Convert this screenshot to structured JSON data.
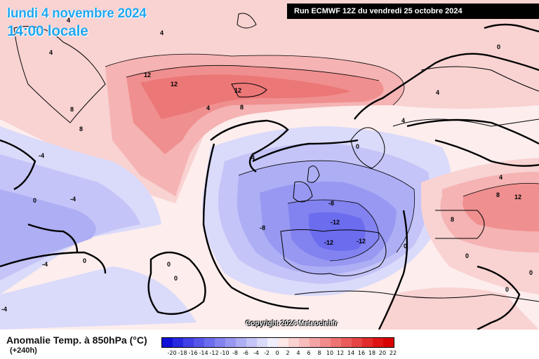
{
  "header": {
    "date_title": "lundi 4 novembre 2024",
    "time_title": "14:00 locale",
    "run_info": "Run ECMWF 12Z du vendredi 25 octobre 2024"
  },
  "footer": {
    "variable_label": "Anomalie Temp. à 850hPa (°C)",
    "lead_time": "(+240h)",
    "copyright": "Copyright 2024 Meteociel.fr"
  },
  "legend": {
    "ticks": [
      "-20",
      "-18",
      "-16",
      "-14",
      "-12",
      "-10",
      "-8",
      "-6",
      "-4",
      "-2",
      "0",
      "2",
      "4",
      "6",
      "8",
      "10",
      "12",
      "14",
      "16",
      "18",
      "20",
      "22"
    ],
    "colors": [
      "#1010d8",
      "#2828e0",
      "#4040e6",
      "#5656ea",
      "#6c6cee",
      "#8282f0",
      "#9898f2",
      "#aeaef5",
      "#c4c4f8",
      "#dadafa",
      "#eeeefd",
      "#fde8e8",
      "#fad2d2",
      "#f7bcbc",
      "#f4a4a4",
      "#f18c8c",
      "#ee7474",
      "#ea5c5c",
      "#e64444",
      "#e22c2c",
      "#de1414",
      "#d80000"
    ]
  },
  "map_labels": [
    {
      "text": "4"
    },
    {
      "text": "4"
    },
    {
      "text": "4"
    },
    {
      "text": "12"
    },
    {
      "text": "12"
    },
    {
      "text": "12"
    },
    {
      "text": "8"
    },
    {
      "text": "8"
    },
    {
      "text": "8"
    },
    {
      "text": "4"
    },
    {
      "text": "0"
    },
    {
      "text": "0"
    },
    {
      "text": "4"
    },
    {
      "text": "4"
    },
    {
      "text": "-4"
    },
    {
      "text": "-4"
    },
    {
      "text": "0"
    },
    {
      "text": "-4"
    },
    {
      "text": "0"
    },
    {
      "text": "-4"
    },
    {
      "text": "-8"
    },
    {
      "text": "-8"
    },
    {
      "text": "-12"
    },
    {
      "text": "-12"
    },
    {
      "text": "-12"
    },
    {
      "text": "0"
    },
    {
      "text": "0"
    },
    {
      "text": "0"
    },
    {
      "text": "0"
    },
    {
      "text": "4"
    },
    {
      "text": "8"
    },
    {
      "text": "12"
    },
    {
      "text": "8"
    },
    {
      "text": "0"
    },
    {
      "text": "-4"
    },
    {
      "text": "0"
    }
  ]
}
